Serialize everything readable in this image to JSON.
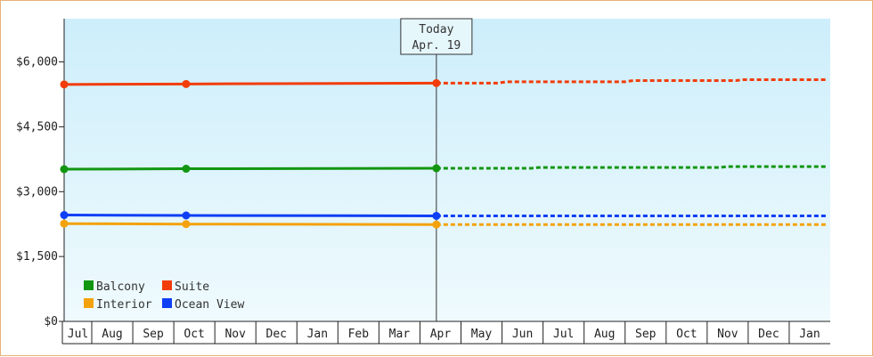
{
  "chart_data": {
    "type": "line",
    "title": "",
    "xlabel": "",
    "ylabel": "",
    "x_labels": [
      "Jul",
      "Aug",
      "Sep",
      "Oct",
      "Nov",
      "Dec",
      "Jan",
      "Feb",
      "Mar",
      "Apr",
      "May",
      "Jun",
      "Jul",
      "Aug",
      "Sep",
      "Oct",
      "Nov",
      "Dec",
      "Jan"
    ],
    "ylim": [
      0,
      7000
    ],
    "y_ticks": [
      0,
      1500,
      3000,
      4500,
      6000
    ],
    "y_tick_labels": [
      "$0",
      "$1,500",
      "$3,000",
      "$4,500",
      "$6,000"
    ],
    "grid": false,
    "legend_placement": "bottom-left",
    "today": {
      "line1": "Today",
      "line2": "Apr. 19",
      "x": 9.4
    },
    "series": [
      {
        "name": "Suite",
        "color": "#f23c0a",
        "actual": [
          [
            0,
            5480
          ],
          [
            3.3,
            5490
          ],
          [
            9.4,
            5510
          ]
        ],
        "forecast": [
          [
            9.4,
            5510
          ],
          [
            10.9,
            5510
          ],
          [
            11.1,
            5540
          ],
          [
            14.0,
            5540
          ],
          [
            14.2,
            5570
          ],
          [
            16.7,
            5570
          ],
          [
            16.9,
            5590
          ],
          [
            18.9,
            5590
          ]
        ]
      },
      {
        "name": "Balcony",
        "color": "#129612",
        "actual": [
          [
            0,
            3520
          ],
          [
            3.3,
            3530
          ],
          [
            9.4,
            3540
          ]
        ],
        "forecast": [
          [
            9.4,
            3540
          ],
          [
            11.7,
            3540
          ],
          [
            11.9,
            3560
          ],
          [
            16.3,
            3560
          ],
          [
            16.5,
            3580
          ],
          [
            18.9,
            3580
          ]
        ]
      },
      {
        "name": "Ocean View",
        "color": "#0f3ff5",
        "actual": [
          [
            0,
            2460
          ],
          [
            3.3,
            2450
          ],
          [
            9.4,
            2440
          ]
        ],
        "forecast": [
          [
            9.4,
            2440
          ],
          [
            18.9,
            2440
          ]
        ]
      },
      {
        "name": "Interior",
        "color": "#f4a20c",
        "actual": [
          [
            0,
            2260
          ],
          [
            3.3,
            2250
          ],
          [
            9.4,
            2240
          ]
        ],
        "forecast": [
          [
            9.4,
            2240
          ],
          [
            18.9,
            2240
          ]
        ]
      }
    ],
    "markers": [
      0,
      3.3,
      9.4
    ],
    "legend": [
      {
        "name": "Balcony",
        "color": "#129612"
      },
      {
        "name": "Suite",
        "color": "#f23c0a"
      },
      {
        "name": "Interior",
        "color": "#f4a20c"
      },
      {
        "name": "Ocean View",
        "color": "#0f3ff5"
      }
    ]
  }
}
